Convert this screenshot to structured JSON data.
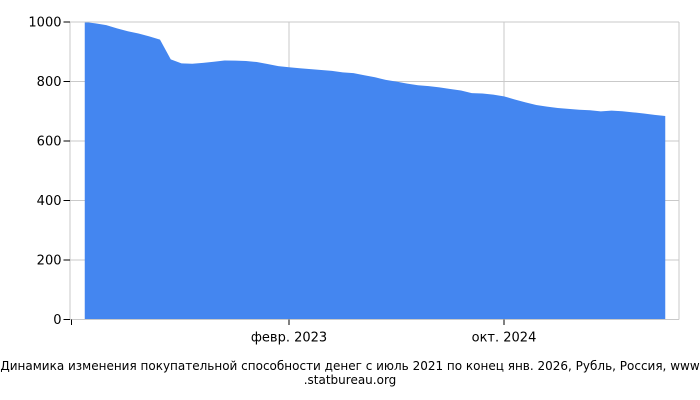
{
  "caption": {
    "line1": "Динамика изменения покупательной способности денег с июль 2021 по конец янв. 2026, Рубль, Россия, www",
    "line2": ".statbureau.org"
  },
  "chart_data": {
    "type": "area",
    "title": "Динамика изменения покупательной способности денег с июль 2021 по конец янв. 2026, Рубль, Россия, www.statbureau.org",
    "ylabel": "",
    "xlabel": "",
    "ylim": [
      0,
      1000
    ],
    "yticks": [
      0,
      200,
      400,
      600,
      800,
      1000
    ],
    "grid": true,
    "legend": "none",
    "x": [
      "2021-07",
      "2021-08",
      "2021-09",
      "2021-10",
      "2021-11",
      "2021-12",
      "2022-01",
      "2022-02",
      "2022-03",
      "2022-04",
      "2022-05",
      "2022-06",
      "2022-07",
      "2022-08",
      "2022-09",
      "2022-10",
      "2022-11",
      "2022-12",
      "2023-01",
      "2023-02",
      "2023-03",
      "2023-04",
      "2023-05",
      "2023-06",
      "2023-07",
      "2023-08",
      "2023-09",
      "2023-10",
      "2023-11",
      "2023-12",
      "2024-01",
      "2024-02",
      "2024-03",
      "2024-04",
      "2024-05",
      "2024-06",
      "2024-07",
      "2024-08",
      "2024-09",
      "2024-10",
      "2024-11",
      "2024-12",
      "2025-01",
      "2025-02",
      "2025-03",
      "2025-04",
      "2025-05",
      "2025-06",
      "2025-07",
      "2025-08",
      "2025-09",
      "2025-10",
      "2025-11",
      "2025-12",
      "2026-01"
    ],
    "values": [
      1000.0,
      995.2,
      989.3,
      978.4,
      969.1,
      961.2,
      951.8,
      940.8,
      874.2,
      860.8,
      859.8,
      862.8,
      866.2,
      870.7,
      870.3,
      868.7,
      865.5,
      858.8,
      851.6,
      847.7,
      844.6,
      841.4,
      838.8,
      835.7,
      830.5,
      828.2,
      821.0,
      814.3,
      805.3,
      799.5,
      792.7,
      787.3,
      784.3,
      780.4,
      774.6,
      769.7,
      761.0,
      759.5,
      755.9,
      750.2,
      739.7,
      730.0,
      721.2,
      715.4,
      710.8,
      707.9,
      704.9,
      703.5,
      699.5,
      702.3,
      699.9,
      696.4,
      692.5,
      687.9,
      684.1
    ],
    "visible_xticks": [
      {
        "label": "февр. 2023",
        "index": 19
      },
      {
        "label": "окт. 2024",
        "index": 39
      }
    ],
    "colors": {
      "area_fill": "#4486f0",
      "gridline": "#c9c9c9",
      "axis": "#c9c9c9",
      "tick": "#000000",
      "text": "#000000"
    }
  }
}
